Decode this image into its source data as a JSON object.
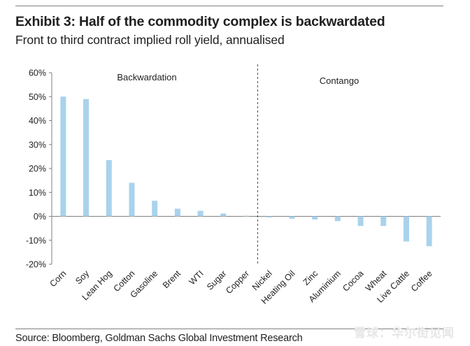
{
  "header": {
    "title": "Exhibit 3: Half of the commodity complex is backwardated",
    "subtitle": "Front to third contract implied roll yield, annualised"
  },
  "footer": {
    "source": "Source: Bloomberg, Goldman Sachs Global Investment Research",
    "watermark": "雪球：华尔街见闻"
  },
  "colors": {
    "bar": "#a9d2ec",
    "axis": "#7f7f7f",
    "text": "#1f1f1f"
  },
  "chart_data": {
    "type": "bar",
    "title": "Exhibit 3: Half of the commodity complex is backwardated",
    "subtitle": "Front to third contract implied roll yield, annualised",
    "xlabel": "",
    "ylabel": "",
    "categories": [
      "Corn",
      "Soy",
      "Lean Hog",
      "Cotton",
      "Gasoline",
      "Brent",
      "WTI",
      "Sugar",
      "Copper",
      "Nickel",
      "Heating Oil",
      "Zinc",
      "Aluminium",
      "Cocoa",
      "Wheat",
      "Live Cattle",
      "Coffee"
    ],
    "values": [
      50,
      49,
      23.5,
      14,
      6.5,
      3.2,
      2.3,
      1.2,
      0.2,
      -0.5,
      -1,
      -1.3,
      -2,
      -4,
      -4,
      -10.5,
      -12.5
    ],
    "ylim": [
      -20,
      60
    ],
    "yticks": [
      60,
      50,
      40,
      30,
      20,
      10,
      0,
      -10,
      -20
    ],
    "ytick_labels": [
      "60%",
      "50%",
      "40%",
      "30%",
      "20%",
      "10%",
      "0%",
      "-10%",
      "-20%"
    ],
    "divider_after_category": "Copper",
    "region_labels": [
      "Backwardation",
      "Contango"
    ],
    "grid": false,
    "legend": "none"
  }
}
